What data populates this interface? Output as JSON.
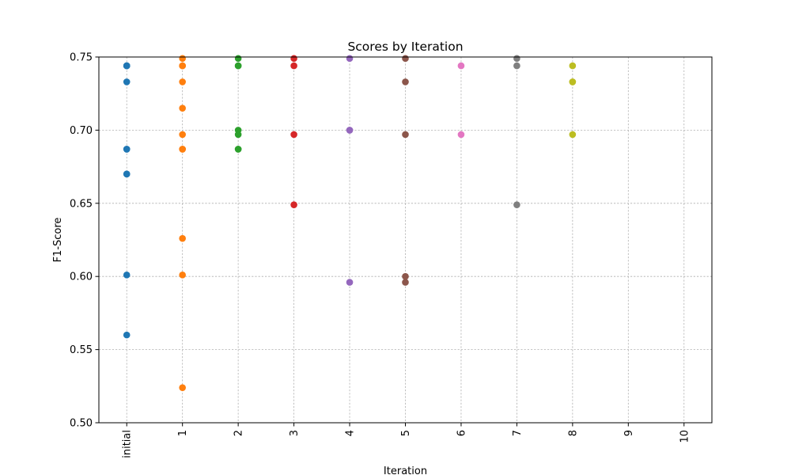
{
  "chart_data": {
    "type": "scatter",
    "title": "Scores by Iteration",
    "xlabel": "Iteration",
    "ylabel": "F1-Score",
    "ylim": [
      0.5,
      0.75
    ],
    "yticks": [
      "0.50",
      "0.55",
      "0.60",
      "0.65",
      "0.70",
      "0.75"
    ],
    "categories": [
      "initial",
      "1",
      "2",
      "3",
      "4",
      "5",
      "6",
      "7",
      "8",
      "9",
      "10"
    ],
    "grid": true,
    "series": [
      {
        "name": "initial",
        "color": "#1f77b4",
        "values": [
          0.744,
          0.744,
          0.744,
          0.733,
          0.687,
          0.687,
          0.67,
          0.67,
          0.601,
          0.56
        ]
      },
      {
        "name": "1",
        "color": "#ff7f0e",
        "values": [
          0.749,
          0.744,
          0.744,
          0.733,
          0.715,
          0.697,
          0.687,
          0.687,
          0.626,
          0.601,
          0.524
        ]
      },
      {
        "name": "2",
        "color": "#2ca02c",
        "values": [
          0.749,
          0.744,
          0.744,
          0.7,
          0.697,
          0.687,
          0.687
        ]
      },
      {
        "name": "3",
        "color": "#d62728",
        "values": [
          0.749,
          0.744,
          0.697,
          0.649
        ]
      },
      {
        "name": "4",
        "color": "#9467bd",
        "values": [
          0.749,
          0.7,
          0.7,
          0.596
        ]
      },
      {
        "name": "5",
        "color": "#8c564b",
        "values": [
          0.749,
          0.733,
          0.697,
          0.6,
          0.596
        ]
      },
      {
        "name": "6",
        "color": "#e377c2",
        "values": [
          0.744,
          0.697
        ]
      },
      {
        "name": "7",
        "color": "#7f7f7f",
        "values": [
          0.749,
          0.744,
          0.649
        ]
      },
      {
        "name": "8",
        "color": "#bcbd22",
        "values": [
          0.744,
          0.733,
          0.733,
          0.697
        ]
      },
      {
        "name": "9",
        "color": "#17becf",
        "values": []
      },
      {
        "name": "10",
        "color": "#1f77b4",
        "values": []
      }
    ]
  }
}
